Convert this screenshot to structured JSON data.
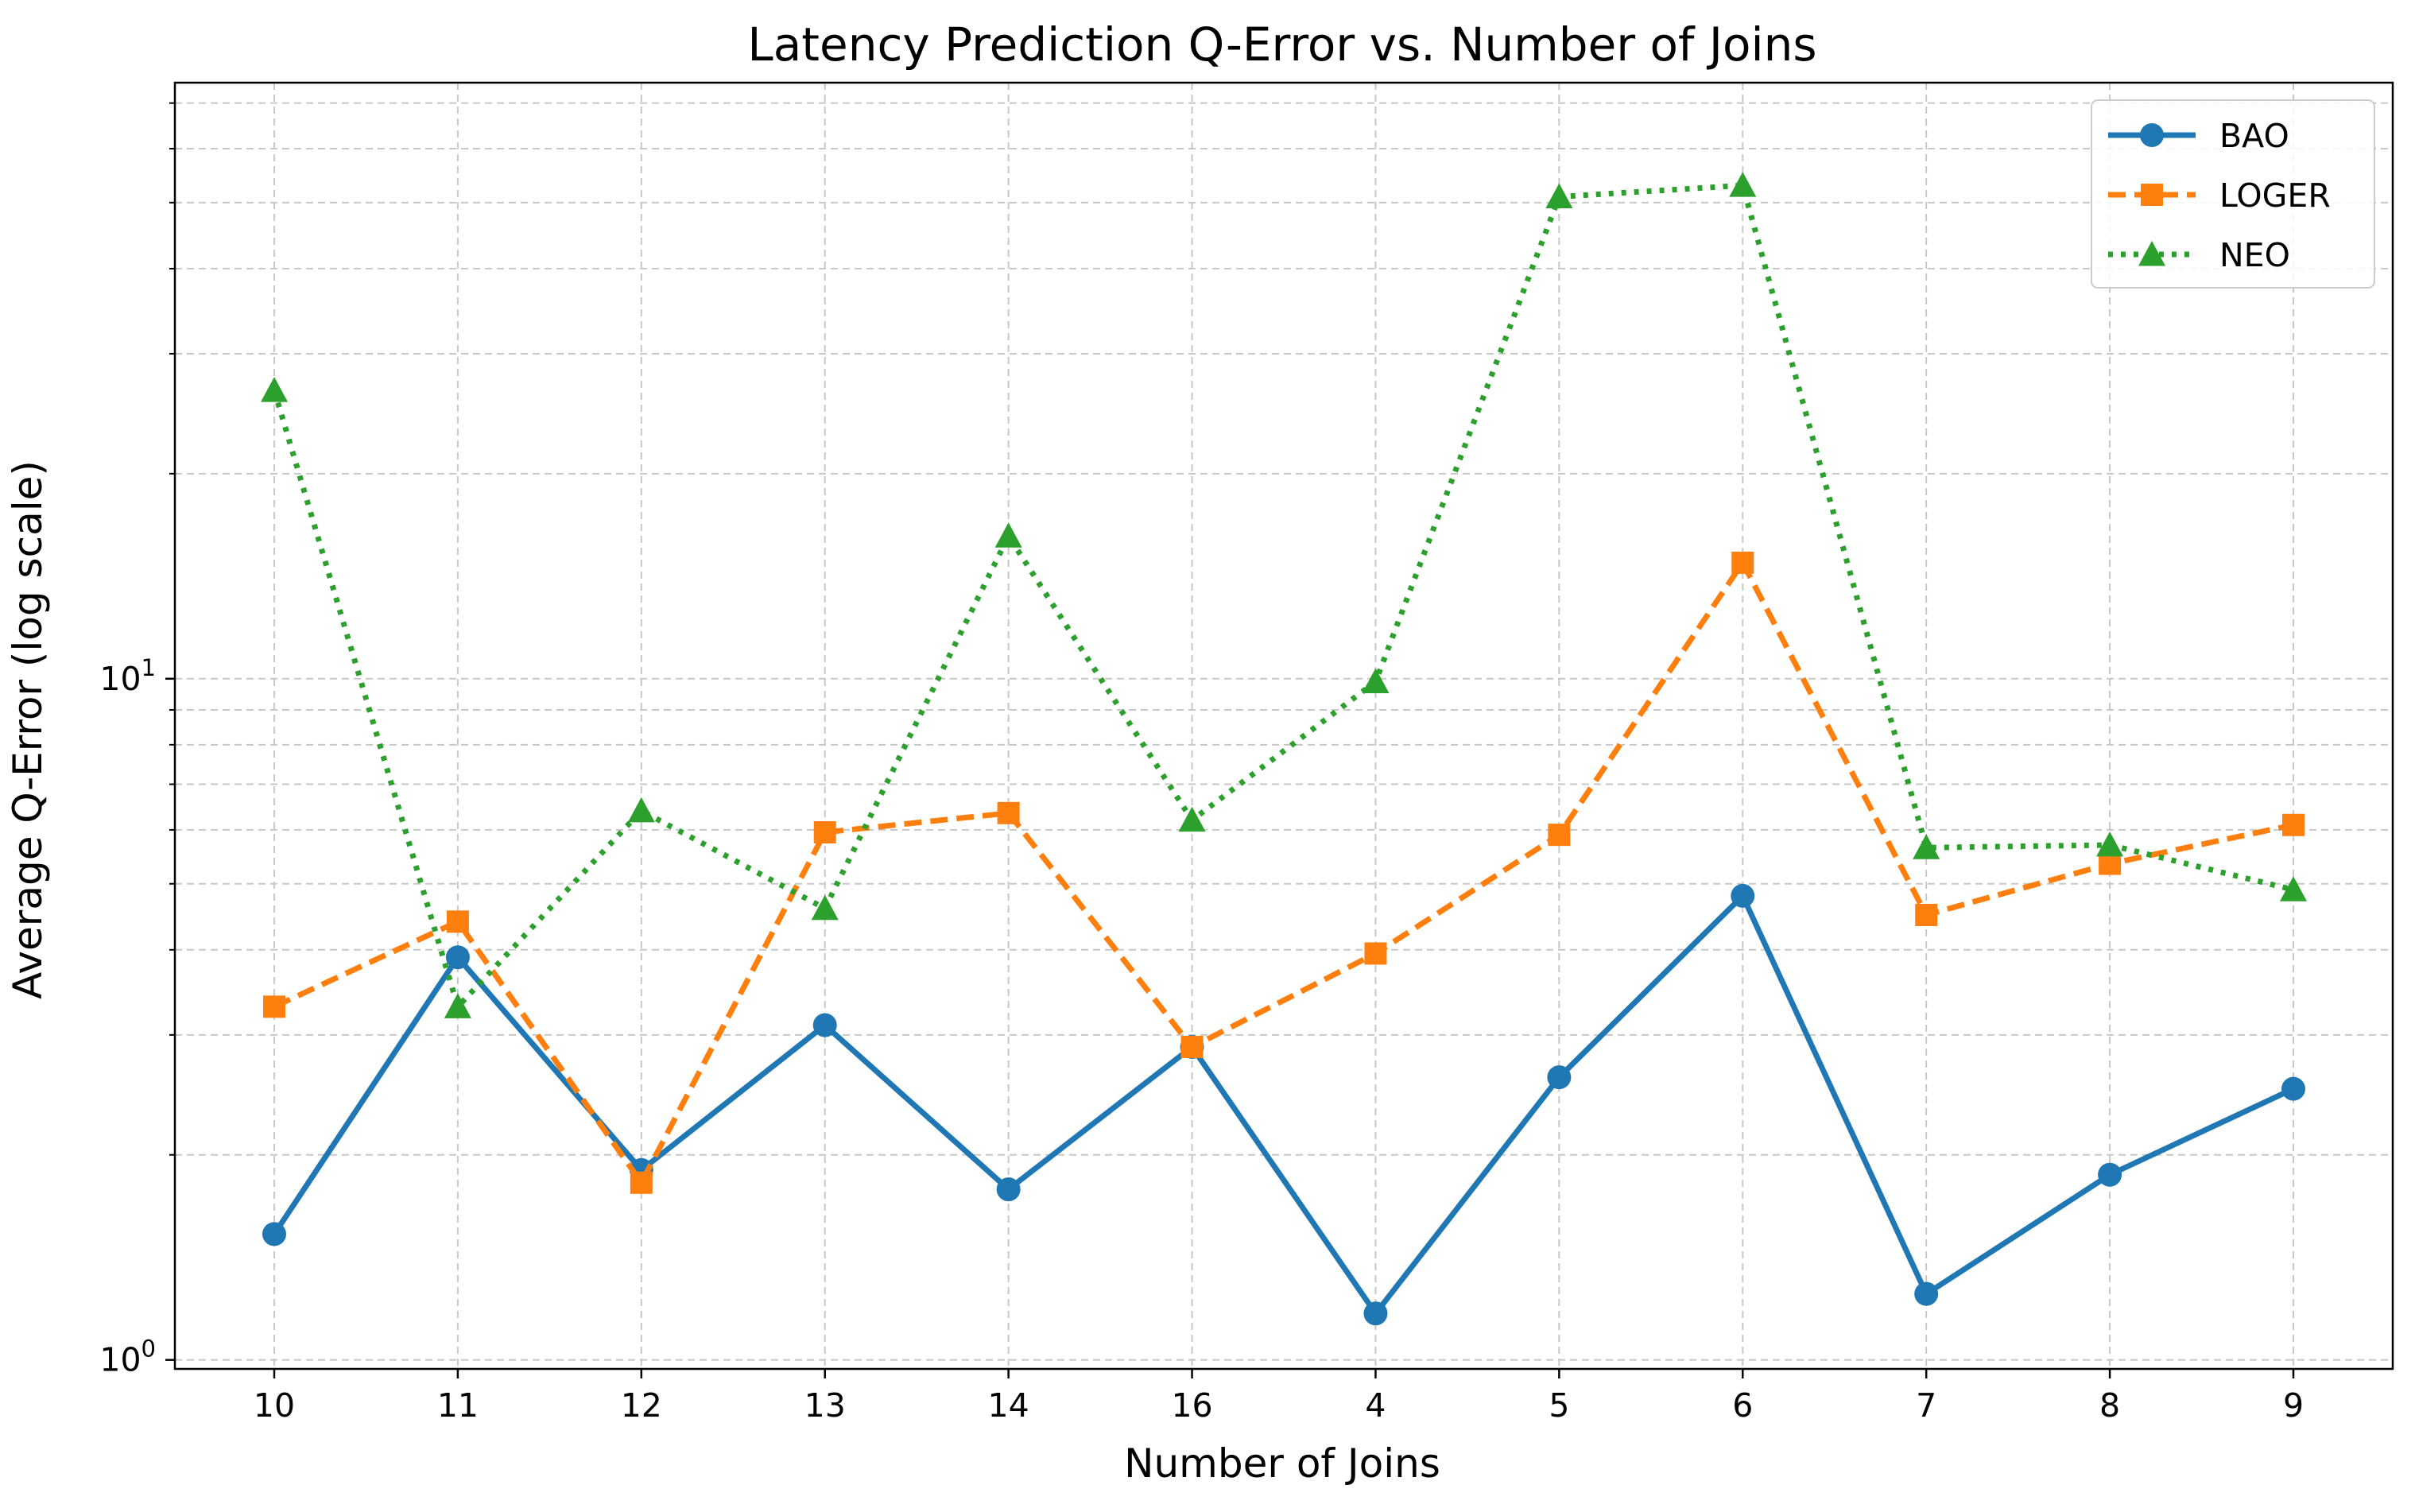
{
  "chart_data": {
    "type": "line",
    "title": "Latency Prediction Q-Error vs. Number of Joins",
    "xlabel": "Number of Joins",
    "ylabel": "Average Q-Error (log scale)",
    "yscale": "log",
    "ylim": [
      0.97,
      75
    ],
    "y_tick_labels": [
      {
        "value": 1,
        "base": "10",
        "exp": "0"
      },
      {
        "value": 10,
        "base": "10",
        "exp": "1"
      }
    ],
    "categories": [
      "10",
      "11",
      "12",
      "13",
      "14",
      "16",
      "4",
      "5",
      "6",
      "7",
      "8",
      "9"
    ],
    "grid": true,
    "legend_position": "top-right",
    "series": [
      {
        "name": "BAO",
        "color": "#1f77b4",
        "marker": "circle",
        "linestyle": "solid",
        "values": [
          1.53,
          3.9,
          1.9,
          3.1,
          1.78,
          2.88,
          1.17,
          2.6,
          4.8,
          1.25,
          1.87,
          2.5
        ]
      },
      {
        "name": "LOGER",
        "color": "#ff7f0e",
        "marker": "square",
        "linestyle": "dashed",
        "values": [
          3.3,
          4.4,
          1.82,
          5.95,
          6.35,
          2.88,
          3.95,
          5.9,
          14.8,
          4.5,
          5.35,
          6.1
        ]
      },
      {
        "name": "NEO",
        "color": "#2ca02c",
        "marker": "triangle",
        "linestyle": "dotted",
        "values": [
          26.5,
          3.3,
          6.4,
          4.6,
          16.2,
          6.2,
          9.9,
          51,
          53,
          5.65,
          5.7,
          4.9
        ]
      }
    ]
  }
}
